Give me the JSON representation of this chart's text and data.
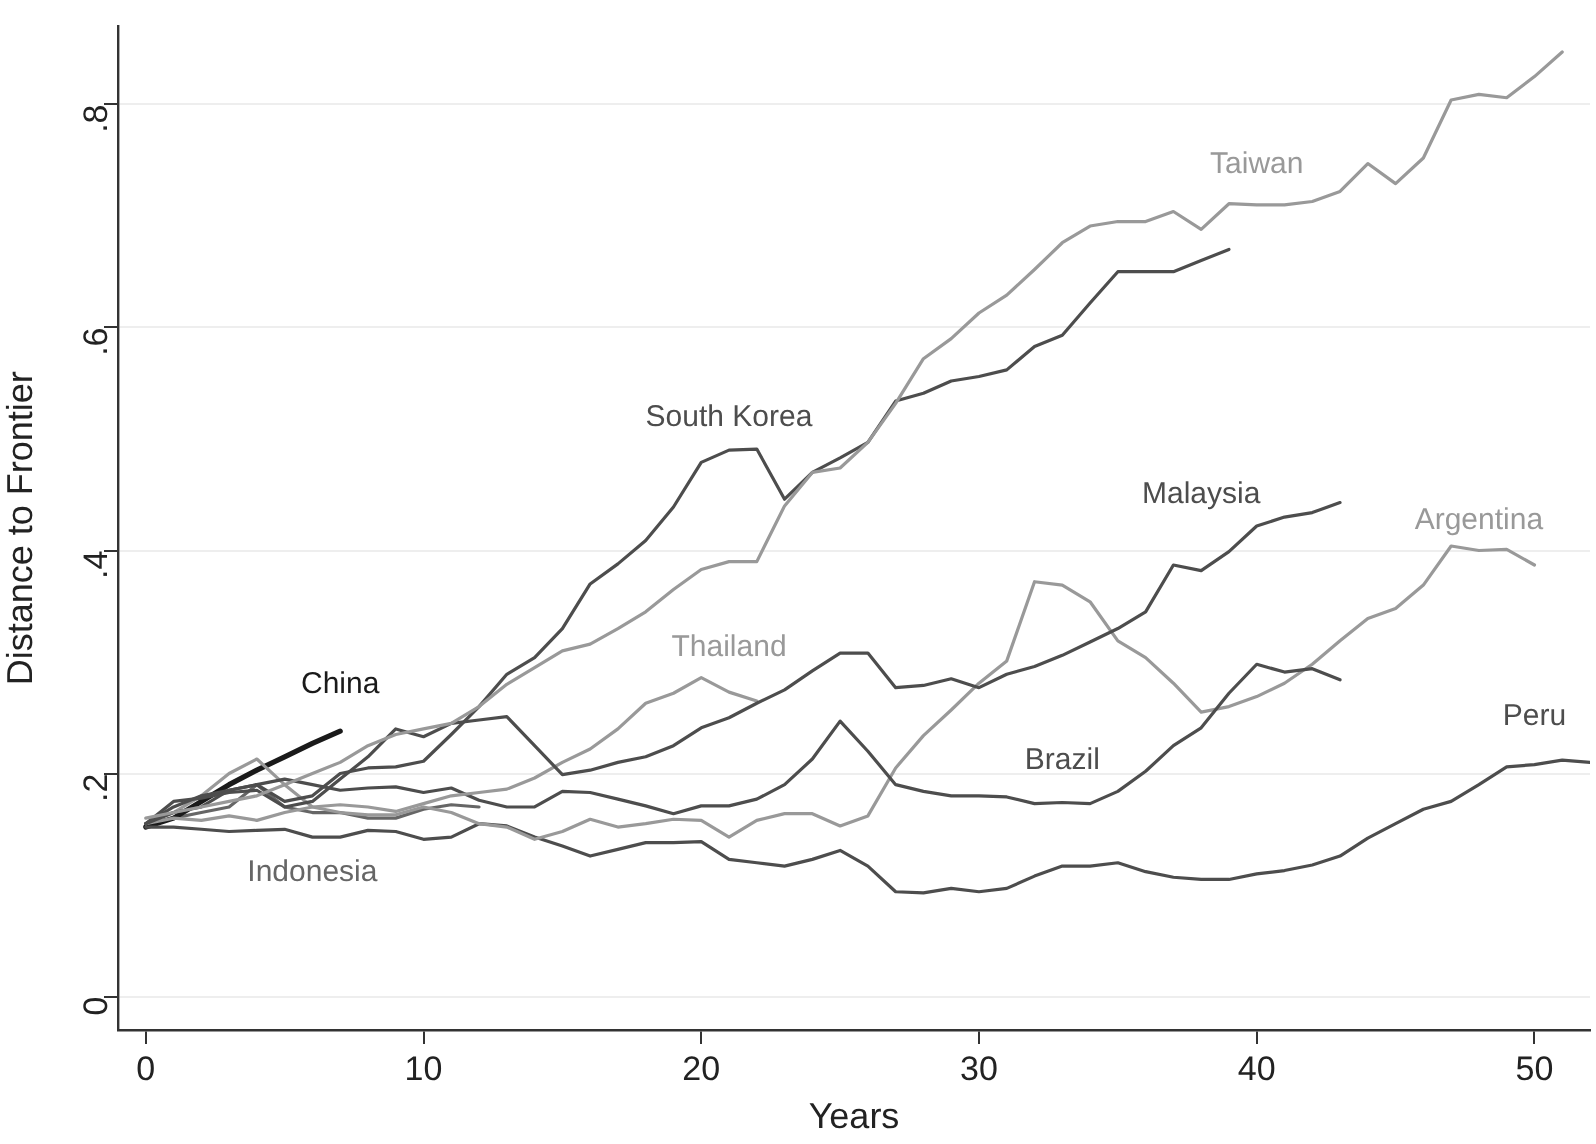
{
  "chart_data": {
    "type": "line",
    "xlabel": "Years",
    "ylabel": "Distance to Frontier",
    "xlim": [
      -1,
      52
    ],
    "xticks": [
      0,
      10,
      20,
      30,
      40,
      50
    ],
    "ylim": [
      -0.03,
      0.87
    ],
    "yticks": [
      {
        "value": 0,
        "label": "0"
      },
      {
        "value": 0.2,
        "label": ".2"
      },
      {
        "value": 0.4,
        "label": ".4"
      },
      {
        "value": 0.6,
        "label": ".6"
      },
      {
        "value": 0.8,
        "label": ".8"
      }
    ],
    "grid": "y",
    "legend": false,
    "marker": "none",
    "line_style": "solid",
    "series": [
      {
        "color": "#999999",
        "x": [
          0,
          1,
          2,
          3,
          4,
          5,
          6,
          7,
          8,
          9,
          10,
          11,
          12,
          13,
          14,
          15,
          16,
          17,
          18,
          19,
          20,
          21,
          22,
          23,
          24,
          25,
          26,
          27,
          28,
          29,
          30,
          31,
          32,
          33,
          34,
          35,
          36,
          37,
          38,
          39,
          40,
          41,
          42,
          43,
          44,
          45,
          46,
          47,
          48,
          49,
          50,
          51
        ],
        "values": [
          0.16,
          0.165,
          0.17,
          0.175,
          0.18,
          0.19,
          0.2,
          0.21,
          0.225,
          0.235,
          0.24,
          0.245,
          0.26,
          0.28,
          0.295,
          0.31,
          0.316,
          0.33,
          0.345,
          0.365,
          0.383,
          0.39,
          0.39,
          0.44,
          0.47,
          0.474,
          0.497,
          0.532,
          0.572,
          0.59,
          0.613,
          0.629,
          0.652,
          0.676,
          0.691,
          0.695,
          0.695,
          0.704,
          0.688,
          0.711,
          0.71,
          0.71,
          0.713,
          0.722,
          0.747,
          0.729,
          0.752,
          0.804,
          0.809,
          0.806,
          0.825,
          0.847
        ],
        "name": "Taiwan"
      },
      {
        "color": "#4d4d4d",
        "x": [
          0,
          1,
          2,
          3,
          4,
          5,
          6,
          7,
          8,
          9,
          10,
          11,
          12,
          13,
          14,
          15,
          16,
          17,
          18,
          19,
          20,
          21,
          22,
          23,
          24,
          25,
          26,
          27,
          28,
          29,
          30,
          31,
          32,
          33,
          34,
          35,
          36,
          37,
          38,
          39
        ],
        "values": [
          0.155,
          0.165,
          0.17,
          0.185,
          0.19,
          0.175,
          0.18,
          0.2,
          0.205,
          0.206,
          0.211,
          0.235,
          0.26,
          0.289,
          0.304,
          0.33,
          0.37,
          0.388,
          0.409,
          0.439,
          0.479,
          0.49,
          0.491,
          0.446,
          0.47,
          0.483,
          0.497,
          0.534,
          0.541,
          0.552,
          0.556,
          0.562,
          0.583,
          0.593,
          0.622,
          0.65,
          0.65,
          0.65,
          0.66,
          0.67
        ],
        "name": "South Korea"
      },
      {
        "color": "#4d4d4d",
        "x": [
          0,
          1,
          2,
          3,
          4,
          5,
          6,
          7,
          8,
          9,
          10,
          11,
          12,
          13,
          14,
          15,
          16,
          17,
          18,
          19,
          20,
          21,
          22,
          23,
          24,
          25,
          26,
          27,
          28,
          29,
          30,
          31,
          32,
          33,
          34,
          35,
          36,
          37,
          38,
          39,
          40,
          41,
          42,
          43
        ],
        "values": [
          0.155,
          0.175,
          0.178,
          0.183,
          0.185,
          0.17,
          0.175,
          0.195,
          0.215,
          0.24,
          0.233,
          0.245,
          0.248,
          0.251,
          0.225,
          0.199,
          0.203,
          0.21,
          0.215,
          0.225,
          0.241,
          0.25,
          0.263,
          0.275,
          0.292,
          0.308,
          0.308,
          0.277,
          0.279,
          0.285,
          0.277,
          0.289,
          0.296,
          0.306,
          0.318,
          0.33,
          0.345,
          0.387,
          0.382,
          0.399,
          0.422,
          0.43,
          0.434,
          0.443
        ],
        "name": "Malaysia"
      },
      {
        "color": "#999999",
        "x": [
          0,
          1,
          2,
          3,
          4,
          5,
          6,
          7,
          8,
          9,
          10,
          11,
          12,
          13,
          14,
          15,
          16,
          17,
          18,
          19,
          20,
          21,
          22
        ],
        "values": [
          0.155,
          0.16,
          0.158,
          0.162,
          0.158,
          0.165,
          0.17,
          0.172,
          0.17,
          0.166,
          0.173,
          0.18,
          0.183,
          0.186,
          0.196,
          0.21,
          0.222,
          0.24,
          0.263,
          0.272,
          0.286,
          0.273,
          0.265
        ],
        "name": "Thailand"
      },
      {
        "color": "#4d4d4d",
        "x": [
          0,
          1,
          2,
          3,
          4,
          5,
          6,
          7,
          8,
          9,
          10,
          11,
          12,
          13,
          14,
          15,
          16,
          17,
          18,
          19,
          20,
          21,
          22,
          23,
          24,
          25,
          26,
          27,
          28,
          29,
          30,
          31,
          32,
          33,
          34,
          35,
          36,
          37,
          38,
          39,
          40,
          41,
          42,
          43
        ],
        "values": [
          0.155,
          0.17,
          0.18,
          0.185,
          0.19,
          0.195,
          0.19,
          0.185,
          0.187,
          0.188,
          0.183,
          0.187,
          0.176,
          0.17,
          0.17,
          0.184,
          0.183,
          0.177,
          0.171,
          0.164,
          0.171,
          0.171,
          0.177,
          0.19,
          0.213,
          0.247,
          0.22,
          0.19,
          0.184,
          0.18,
          0.18,
          0.179,
          0.173,
          0.174,
          0.173,
          0.184,
          0.202,
          0.225,
          0.241,
          0.272,
          0.298,
          0.291,
          0.294,
          0.284
        ],
        "name": "Brazil"
      },
      {
        "color": "#999999",
        "x": [
          0,
          1,
          2,
          3,
          4,
          5,
          6,
          7,
          8,
          9,
          10,
          11,
          12,
          13,
          14,
          15,
          16,
          17,
          18,
          19,
          20,
          21,
          22,
          23,
          24,
          25,
          26,
          27,
          28,
          29,
          30,
          31,
          32,
          33,
          34,
          35,
          36,
          37,
          38,
          39,
          40,
          41,
          42,
          43,
          44,
          45,
          46,
          47,
          48,
          49,
          50
        ],
        "values": [
          0.155,
          0.165,
          0.18,
          0.2,
          0.213,
          0.19,
          0.17,
          0.165,
          0.163,
          0.163,
          0.17,
          0.165,
          0.155,
          0.152,
          0.141,
          0.148,
          0.159,
          0.152,
          0.155,
          0.159,
          0.158,
          0.143,
          0.158,
          0.164,
          0.164,
          0.153,
          0.162,
          0.205,
          0.234,
          0.257,
          0.281,
          0.301,
          0.372,
          0.369,
          0.354,
          0.319,
          0.304,
          0.281,
          0.255,
          0.26,
          0.269,
          0.281,
          0.298,
          0.319,
          0.339,
          0.348,
          0.369,
          0.404,
          0.4,
          0.401,
          0.387
        ],
        "name": "Argentina"
      },
      {
        "color": "#4d4d4d",
        "x": [
          0,
          1,
          2,
          3,
          4,
          5,
          6,
          7,
          8,
          9,
          10,
          11,
          12,
          13,
          14,
          15,
          16,
          17,
          18,
          19,
          20,
          21,
          22,
          23,
          24,
          25,
          26,
          27,
          28,
          29,
          30,
          31,
          32,
          33,
          34,
          35,
          36,
          37,
          38,
          39,
          40,
          41,
          42,
          43,
          44,
          45,
          46,
          47,
          48,
          49,
          50,
          51,
          52
        ],
        "values": [
          0.152,
          0.152,
          0.15,
          0.148,
          0.149,
          0.15,
          0.143,
          0.143,
          0.149,
          0.148,
          0.141,
          0.143,
          0.155,
          0.153,
          0.143,
          0.135,
          0.126,
          0.132,
          0.138,
          0.138,
          0.139,
          0.123,
          0.12,
          0.117,
          0.123,
          0.131,
          0.117,
          0.094,
          0.093,
          0.097,
          0.094,
          0.097,
          0.108,
          0.117,
          0.117,
          0.12,
          0.112,
          0.107,
          0.105,
          0.105,
          0.11,
          0.113,
          0.118,
          0.126,
          0.142,
          0.155,
          0.168,
          0.175,
          0.19,
          0.206,
          0.208,
          0.212,
          0.21
        ],
        "name": "Peru"
      },
      {
        "color": "#1a1a1a",
        "x": [
          0,
          1,
          2,
          3,
          4,
          5,
          6,
          7
        ],
        "values": [
          0.152,
          0.16,
          0.175,
          0.19,
          0.203,
          0.215,
          0.227,
          0.238
        ],
        "name": "China"
      },
      {
        "color": "#666666",
        "x": [
          0,
          1,
          2,
          3,
          4,
          5,
          6,
          7,
          8,
          9,
          10,
          11,
          12
        ],
        "values": [
          0.155,
          0.16,
          0.165,
          0.17,
          0.19,
          0.17,
          0.165,
          0.165,
          0.16,
          0.16,
          0.168,
          0.172,
          0.17
        ],
        "name": "Indonesia"
      }
    ]
  }
}
